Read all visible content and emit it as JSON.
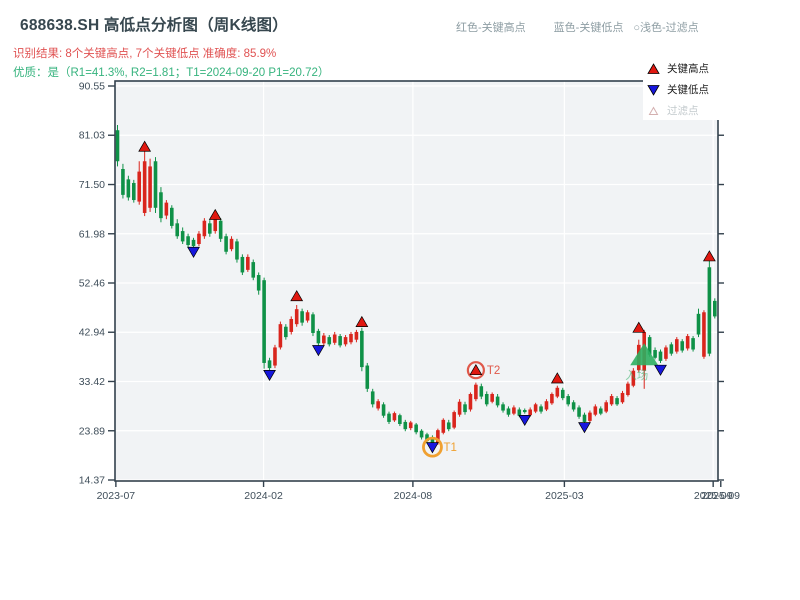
{
  "header": {
    "title": "688638.SH 高低点分析图（周K线图）",
    "subtitle_red": "识别结果: 8个关键高点, 7个关键低点  准确度: 85.9%",
    "subtitle_green": "优质：是（R1=41.3%, R2=1.81；T1=2024-09-20 P1=20.72）",
    "note_red": "红色-关键高点",
    "note_blue": "蓝色-关键低点",
    "note_filter": "○浅色-过滤点"
  },
  "legend": {
    "items": [
      {
        "glyph": "triangle-up",
        "label": "关键高点",
        "muted": false
      },
      {
        "glyph": "triangle-down",
        "label": "关键低点",
        "muted": false
      },
      {
        "glyph": "triangle-up-outline",
        "label": "过滤点",
        "muted": true
      }
    ]
  },
  "colors": {
    "title": "#37474f",
    "sub_red": "#e05252",
    "sub_green": "#36b37e",
    "note": "#8d9da3",
    "tick_label": "#3f4e5a",
    "spine": "#33414d",
    "plot_bg": "#f1f3f5",
    "grid": "#ffffff",
    "candle_up_red": "#d9251d",
    "candle_down_green": "#0f9147",
    "marker_high": "#e01810",
    "marker_low": "#1717dd",
    "marker_filter_edge": "#d4b0b0",
    "entry_green": "#2eaf62",
    "t1_ring": "#f0a030",
    "t2_ring": "#e0584a"
  },
  "chart_data": {
    "type": "candlestick",
    "title": "688638.SH 高低点分析图（周K线图）",
    "frequency": "weekly",
    "ylim": [
      14.37,
      90.55
    ],
    "y_ticks": [
      90.55,
      81.03,
      71.5,
      61.98,
      52.46,
      42.94,
      33.42,
      23.89,
      14.37
    ],
    "x_ticks": [
      {
        "label": "2023-07",
        "i": -0.3
      },
      {
        "label": "2024-02",
        "i": 26.9
      },
      {
        "label": "2024-08",
        "i": 54.4
      },
      {
        "label": "2025-03",
        "i": 82.3
      },
      {
        "label": "2025-09",
        "i": 109.7
      },
      {
        "label": "2025-09",
        "i": 111.1
      }
    ],
    "grid": true,
    "legend_position": "top-right",
    "candles_format": [
      "high",
      "bodyTop",
      "bodyBottom",
      "low",
      "color r=red(up) g=green(down)"
    ],
    "candles": [
      [
        83,
        82,
        76,
        75,
        "g"
      ],
      [
        75.5,
        74.5,
        69.5,
        68.8,
        "g"
      ],
      [
        73.2,
        72.5,
        69,
        68.4,
        "g"
      ],
      [
        72.4,
        71.8,
        68.5,
        68,
        "g"
      ],
      [
        76,
        74,
        68.2,
        67.6,
        "r"
      ],
      [
        78.3,
        76,
        66,
        65.4,
        "r"
      ],
      [
        76.5,
        75,
        67,
        66.2,
        "r"
      ],
      [
        76.8,
        76,
        67,
        66,
        "g"
      ],
      [
        71,
        70,
        65,
        64.2,
        "g"
      ],
      [
        68.5,
        68,
        65.5,
        64.8,
        "r"
      ],
      [
        67.5,
        67,
        63.5,
        63,
        "g"
      ],
      [
        64.8,
        64,
        61.5,
        61,
        "g"
      ],
      [
        63.2,
        62.5,
        60.5,
        60,
        "g"
      ],
      [
        62,
        61.5,
        59.8,
        59.2,
        "g"
      ],
      [
        61.2,
        60.8,
        59.6,
        59.3,
        "g"
      ],
      [
        62.5,
        62,
        60,
        59.6,
        "r"
      ],
      [
        65,
        64.5,
        61.5,
        61,
        "r"
      ],
      [
        64.6,
        64,
        62,
        61.4,
        "g"
      ],
      [
        65.8,
        65,
        62.5,
        62,
        "r"
      ],
      [
        65,
        64.5,
        61,
        60.4,
        "g"
      ],
      [
        62,
        61.5,
        58.5,
        58,
        "g"
      ],
      [
        61.5,
        61,
        59,
        58.6,
        "r"
      ],
      [
        61,
        60.5,
        57,
        56.4,
        "g"
      ],
      [
        58,
        57.5,
        54.5,
        54,
        "g"
      ],
      [
        58,
        57.5,
        55,
        54.6,
        "r"
      ],
      [
        57,
        56.5,
        53.5,
        53,
        "g"
      ],
      [
        54.5,
        54,
        51,
        50.2,
        "g"
      ],
      [
        53.5,
        53,
        37,
        35.9,
        "g"
      ],
      [
        38,
        37.5,
        36,
        35.6,
        "g"
      ],
      [
        40.5,
        40,
        36.5,
        36,
        "r"
      ],
      [
        45,
        44.5,
        40,
        39.6,
        "r"
      ],
      [
        44.5,
        44,
        42,
        41.5,
        "g"
      ],
      [
        46,
        45.5,
        43,
        42.5,
        "r"
      ],
      [
        48.2,
        47.4,
        44.5,
        44,
        "r"
      ],
      [
        47.5,
        47,
        44.8,
        44.2,
        "g"
      ],
      [
        47.2,
        46.8,
        45.2,
        44.8,
        "r"
      ],
      [
        46.8,
        46.4,
        42.8,
        42.2,
        "g"
      ],
      [
        43.6,
        43.2,
        40.8,
        40.2,
        "g"
      ],
      [
        42.8,
        42.3,
        40.8,
        40.4,
        "r"
      ],
      [
        42.4,
        42,
        40.6,
        40.2,
        "g"
      ],
      [
        43,
        42.5,
        40.9,
        40.5,
        "r"
      ],
      [
        42.6,
        42.2,
        40.4,
        40,
        "g"
      ],
      [
        42.4,
        42,
        40.6,
        40.2,
        "r"
      ],
      [
        43,
        42.6,
        41,
        40.6,
        "r"
      ],
      [
        43.4,
        43,
        41.5,
        41,
        "r"
      ],
      [
        43.8,
        43.2,
        36.2,
        35.4,
        "g"
      ],
      [
        37,
        36.5,
        32,
        31.4,
        "g"
      ],
      [
        32,
        31.5,
        29,
        28.4,
        "g"
      ],
      [
        30,
        29.6,
        28.2,
        27.8,
        "r"
      ],
      [
        29.4,
        29,
        26.8,
        26.4,
        "g"
      ],
      [
        27.6,
        27.2,
        25.6,
        25.2,
        "g"
      ],
      [
        27.6,
        27.3,
        25.9,
        25.6,
        "r"
      ],
      [
        27.2,
        26.9,
        25.2,
        24.8,
        "g"
      ],
      [
        26,
        25.6,
        24.2,
        23.8,
        "g"
      ],
      [
        25.8,
        25.5,
        24.4,
        24,
        "r"
      ],
      [
        25.4,
        25.1,
        23.6,
        23.2,
        "g"
      ],
      [
        24.2,
        23.9,
        22.6,
        22.2,
        "g"
      ],
      [
        23.5,
        23.2,
        21.9,
        21.4,
        "g"
      ],
      [
        23,
        22.6,
        21.3,
        20.9,
        "g"
      ],
      [
        24.3,
        24,
        21.5,
        21.2,
        "r"
      ],
      [
        26.3,
        26,
        23.5,
        23.2,
        "r"
      ],
      [
        26,
        25.5,
        24.2,
        23.8,
        "g"
      ],
      [
        27.8,
        27.5,
        24.5,
        24.2,
        "r"
      ],
      [
        30,
        29.5,
        27,
        26.6,
        "r"
      ],
      [
        29.5,
        29,
        27.5,
        27,
        "g"
      ],
      [
        31.3,
        31,
        28,
        27.6,
        "r"
      ],
      [
        33.2,
        32.8,
        30,
        29.6,
        "r"
      ],
      [
        33,
        32.5,
        30.5,
        30,
        "g"
      ],
      [
        31.5,
        31,
        29,
        28.6,
        "g"
      ],
      [
        31.3,
        31,
        29.5,
        29.2,
        "r"
      ],
      [
        31,
        30.5,
        28.8,
        28.4,
        "g"
      ],
      [
        29.4,
        29,
        27.8,
        27.4,
        "g"
      ],
      [
        28.6,
        28.2,
        27,
        26.6,
        "g"
      ],
      [
        28.8,
        28.4,
        27.2,
        26.9,
        "r"
      ],
      [
        28.4,
        28,
        26.8,
        26.5,
        "g"
      ],
      [
        28.2,
        27.9,
        27.5,
        27.2,
        "g"
      ],
      [
        28.4,
        28,
        26.9,
        26.6,
        "r"
      ],
      [
        29.3,
        29,
        27.6,
        27.3,
        "r"
      ],
      [
        29,
        28.6,
        27.6,
        27.2,
        "g"
      ],
      [
        30,
        29.6,
        28,
        27.7,
        "r"
      ],
      [
        31.3,
        31,
        29.2,
        28.9,
        "r"
      ],
      [
        32.6,
        32.2,
        30.5,
        30.2,
        "r"
      ],
      [
        32.2,
        31.8,
        30.2,
        29.8,
        "g"
      ],
      [
        31,
        30.6,
        29,
        28.6,
        "g"
      ],
      [
        29.8,
        29.4,
        28,
        27.6,
        "g"
      ],
      [
        28.8,
        28.4,
        26.6,
        26.2,
        "g"
      ],
      [
        27.4,
        27,
        25.6,
        25.2,
        "g"
      ],
      [
        27.8,
        27.4,
        25.8,
        25.5,
        "r"
      ],
      [
        29,
        28.6,
        27,
        26.7,
        "r"
      ],
      [
        28.6,
        28.2,
        27.2,
        26.9,
        "g"
      ],
      [
        29.8,
        29.4,
        27.6,
        27.3,
        "r"
      ],
      [
        31,
        30.6,
        29,
        28.7,
        "r"
      ],
      [
        30.6,
        30.2,
        29,
        28.7,
        "g"
      ],
      [
        31.6,
        31.2,
        29.4,
        29.1,
        "r"
      ],
      [
        33.4,
        33,
        30.8,
        30.5,
        "r"
      ],
      [
        36,
        35.5,
        32.6,
        32.3,
        "r"
      ],
      [
        41.5,
        40.5,
        35.6,
        35.2,
        "r"
      ],
      [
        43.4,
        43,
        35.5,
        32,
        "r"
      ],
      [
        42.4,
        42,
        38.6,
        38.2,
        "g"
      ],
      [
        40,
        39.5,
        38,
        37.7,
        "g"
      ],
      [
        39.6,
        39.2,
        37.4,
        37,
        "g"
      ],
      [
        40.4,
        40,
        37.8,
        37.4,
        "r"
      ],
      [
        41,
        40.6,
        38.8,
        38.4,
        "g"
      ],
      [
        42,
        41.6,
        39.2,
        38.8,
        "r"
      ],
      [
        41.6,
        41.2,
        39.4,
        39,
        "g"
      ],
      [
        42.6,
        42.2,
        39.8,
        39.4,
        "r"
      ],
      [
        42.2,
        41.8,
        39.6,
        39.2,
        "g"
      ],
      [
        47.5,
        46.5,
        42.5,
        42,
        "g"
      ],
      [
        47.2,
        46.8,
        38.2,
        37.8,
        "r"
      ],
      [
        56.8,
        55.5,
        38.8,
        38.3,
        "g"
      ],
      [
        49.5,
        49,
        46,
        45.6,
        "g"
      ]
    ],
    "key_highs": [
      {
        "i": 5,
        "price": 78.8
      },
      {
        "i": 18,
        "price": 65.6
      },
      {
        "i": 33,
        "price": 49.9
      },
      {
        "i": 45,
        "price": 44.9
      },
      {
        "i": 66,
        "price": 35.6
      },
      {
        "i": 81,
        "price": 34.0
      },
      {
        "i": 96,
        "price": 43.8
      },
      {
        "i": 109,
        "price": 57.6
      }
    ],
    "key_lows": [
      {
        "i": 14,
        "price": 58.5
      },
      {
        "i": 28,
        "price": 34.7
      },
      {
        "i": 37,
        "price": 39.5
      },
      {
        "i": 58,
        "price": 20.72
      },
      {
        "i": 75,
        "price": 26.0
      },
      {
        "i": 86,
        "price": 24.6
      },
      {
        "i": 100,
        "price": 35.7
      }
    ],
    "annotations": {
      "t1": {
        "label": "T1",
        "i": 58,
        "price": 20.72,
        "date": "2024-09-20"
      },
      "t2": {
        "label": "T2",
        "i": 66,
        "price": 35.6
      },
      "entry": {
        "label": "入场",
        "i": 97,
        "price": 38.5
      }
    }
  }
}
